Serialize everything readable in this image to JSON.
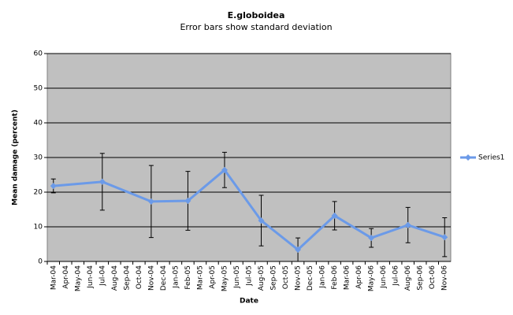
{
  "chart_data": {
    "type": "line",
    "title": "E.globoidea",
    "subtitle": "Error bars show standard deviation",
    "x_label": "Date",
    "y_label": "Mean damage (percent)",
    "categories": [
      "Mar-04",
      "Apr-04",
      "May-04",
      "Jun-04",
      "Jul-04",
      "Aug-04",
      "Sep-04",
      "Oct-04",
      "Nov-04",
      "Dec-04",
      "Jan-05",
      "Feb-05",
      "Mar-05",
      "Apr-05",
      "May-05",
      "Jun-05",
      "Jul-05",
      "Aug-05",
      "Sep-05",
      "Oct-05",
      "Nov-05",
      "Dec-05",
      "Jan-06",
      "Feb-06",
      "Mar-06",
      "Apr-06",
      "May-06",
      "Jun-06",
      "Jul-06",
      "Aug-06",
      "Sep-06",
      "Oct-06",
      "Nov-06"
    ],
    "series": [
      {
        "name": "Series1",
        "color": "#6b9ae8",
        "x": [
          "Mar-04",
          "Jul-04",
          "Nov-04",
          "Feb-05",
          "May-05",
          "Aug-05",
          "Nov-05",
          "Feb-06",
          "May-06",
          "Aug-06",
          "Nov-06"
        ],
        "values": [
          21.8,
          23.0,
          17.3,
          17.5,
          26.4,
          11.8,
          3.4,
          13.2,
          6.8,
          10.5,
          7.0
        ],
        "errors": [
          2.0,
          8.2,
          10.4,
          8.5,
          5.1,
          7.3,
          3.4,
          4.1,
          2.7,
          5.1,
          5.6
        ]
      }
    ],
    "ylim": [
      0,
      60
    ],
    "yticks": [
      0,
      10,
      20,
      30,
      40,
      50,
      60
    ],
    "grid": true,
    "legend": "right"
  }
}
